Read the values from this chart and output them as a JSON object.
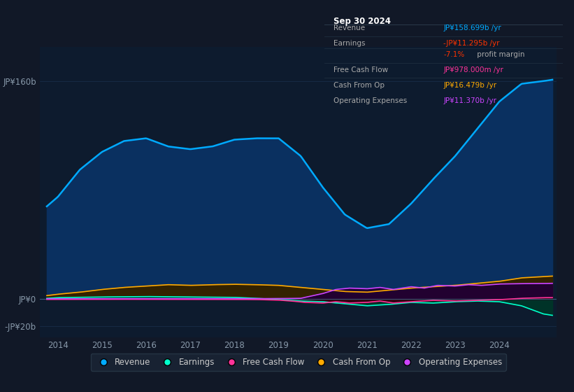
{
  "bg_color": "#111827",
  "plot_bg_color": "#0d1b2e",
  "fig_width": 8.21,
  "fig_height": 5.6,
  "dpi": 100,
  "ylim": [
    -28,
    185
  ],
  "xlim": [
    2013.6,
    2025.3
  ],
  "yticks": [
    -20,
    0,
    160
  ],
  "ytick_labels": [
    "-JP¥20b",
    "JP¥0",
    "JP¥160b"
  ],
  "xticks": [
    2014,
    2015,
    2016,
    2017,
    2018,
    2019,
    2020,
    2021,
    2022,
    2023,
    2024
  ],
  "grid_color": "#1e3a5a",
  "tick_color": "#8899aa",
  "revenue_color": "#00aaff",
  "revenue_fill": "#0a3060",
  "earnings_color": "#00ffcc",
  "earnings_fill": "#003328",
  "fcf_color": "#ff3399",
  "fcf_fill": "#330011",
  "cfo_color": "#ffaa00",
  "cfo_fill": "#332200",
  "opex_color": "#cc44ff",
  "opex_fill": "#220033",
  "info_box": {
    "title": "Sep 30 2024",
    "rows": [
      {
        "label": "Revenue",
        "value": "JP¥158.699b /yr",
        "value_color": "#00aaff"
      },
      {
        "label": "Earnings",
        "value": "-JP¥11.295b /yr",
        "value_color": "#ff3300"
      },
      {
        "label": "",
        "value": "-7.1%",
        "value_color": "#ff3300",
        "suffix": " profit margin"
      },
      {
        "label": "Free Cash Flow",
        "value": "JP¥978.000m /yr",
        "value_color": "#ff3399"
      },
      {
        "label": "Cash From Op",
        "value": "JP¥16.479b /yr",
        "value_color": "#ffaa00"
      },
      {
        "label": "Operating Expenses",
        "value": "JP¥11.370b /yr",
        "value_color": "#cc44ff"
      }
    ]
  },
  "legend_items": [
    {
      "label": "Revenue",
      "color": "#00aaff"
    },
    {
      "label": "Earnings",
      "color": "#00ffcc"
    },
    {
      "label": "Free Cash Flow",
      "color": "#ff3399"
    },
    {
      "label": "Cash From Op",
      "color": "#ffaa00"
    },
    {
      "label": "Operating Expenses",
      "color": "#cc44ff"
    }
  ]
}
